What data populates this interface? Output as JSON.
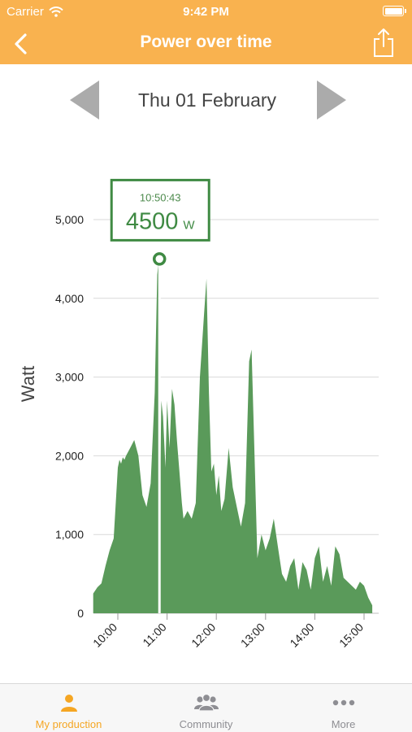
{
  "status_bar": {
    "carrier": "Carrier",
    "time": "9:42 PM"
  },
  "nav": {
    "title": "Power over time"
  },
  "date_nav": {
    "label": "Thu 01 February"
  },
  "tooltip": {
    "time": "10:50:43",
    "value": "4500",
    "unit": "W"
  },
  "tabs": [
    {
      "label": "My production",
      "icon": "person-icon",
      "active": true
    },
    {
      "label": "Community",
      "icon": "group-icon",
      "active": false
    },
    {
      "label": "More",
      "icon": "more-dots-icon",
      "active": false
    }
  ],
  "colors": {
    "accent": "#f9b24f",
    "series": "#5a9a5a",
    "tooltip_border": "#3f8a43",
    "active_tab": "#f5a623"
  },
  "chart_data": {
    "type": "area",
    "ylabel": "Watt",
    "xlabel": "",
    "ylim": [
      0,
      5000
    ],
    "y_ticks": [
      0,
      1000,
      2000,
      3000,
      4000,
      5000
    ],
    "y_tick_labels": [
      "0",
      "1,000",
      "2,000",
      "3,000",
      "4,000",
      "5,000"
    ],
    "x_ticks": [
      "10:00",
      "11:00",
      "12:00",
      "13:00",
      "14:00",
      "15:00"
    ],
    "grid": true,
    "highlight": {
      "x": "10:50:43",
      "y": 4500
    },
    "x": [
      "09:30",
      "09:35",
      "09:40",
      "09:45",
      "09:50",
      "09:55",
      "10:00",
      "10:02",
      "10:04",
      "10:06",
      "10:08",
      "10:10",
      "10:15",
      "10:20",
      "10:25",
      "10:30",
      "10:35",
      "10:40",
      "10:45",
      "10:48",
      "10:50",
      "10:51",
      "10:53",
      "10:55",
      "10:58",
      "11:00",
      "11:03",
      "11:06",
      "11:09",
      "11:12",
      "11:15",
      "11:18",
      "11:20",
      "11:25",
      "11:30",
      "11:35",
      "11:40",
      "11:45",
      "11:48",
      "11:51",
      "11:54",
      "11:57",
      "12:00",
      "12:03",
      "12:06",
      "12:10",
      "12:15",
      "12:20",
      "12:25",
      "12:30",
      "12:35",
      "12:40",
      "12:43",
      "12:46",
      "12:50",
      "12:55",
      "13:00",
      "13:05",
      "13:10",
      "13:15",
      "13:20",
      "13:25",
      "13:30",
      "13:35",
      "13:40",
      "13:45",
      "13:50",
      "13:55",
      "14:00",
      "14:05",
      "14:10",
      "14:15",
      "14:20",
      "14:25",
      "14:30",
      "14:35",
      "14:40",
      "14:45",
      "14:50",
      "14:55",
      "15:00",
      "15:05",
      "15:10"
    ],
    "series": [
      {
        "values": [
          250,
          330,
          380,
          600,
          800,
          950,
          1850,
          1950,
          1900,
          1980,
          1950,
          2000,
          2100,
          2200,
          2000,
          1500,
          1350,
          1650,
          2800,
          4300,
          4500,
          1200,
          2700,
          2500,
          1850,
          2700,
          2100,
          2850,
          2650,
          2200,
          1800,
          1400,
          1200,
          1300,
          1200,
          1400,
          3000,
          3800,
          4250,
          2800,
          1800,
          1900,
          1500,
          1750,
          1300,
          1450,
          2100,
          1600,
          1350,
          1100,
          1400,
          3200,
          3350,
          2200,
          700,
          1000,
          800,
          950,
          1200,
          850,
          500,
          400,
          600,
          700,
          300,
          650,
          550,
          300,
          700,
          850,
          400,
          600,
          350,
          850,
          750,
          450,
          400,
          350,
          300,
          400,
          350,
          200,
          100
        ]
      }
    ]
  }
}
